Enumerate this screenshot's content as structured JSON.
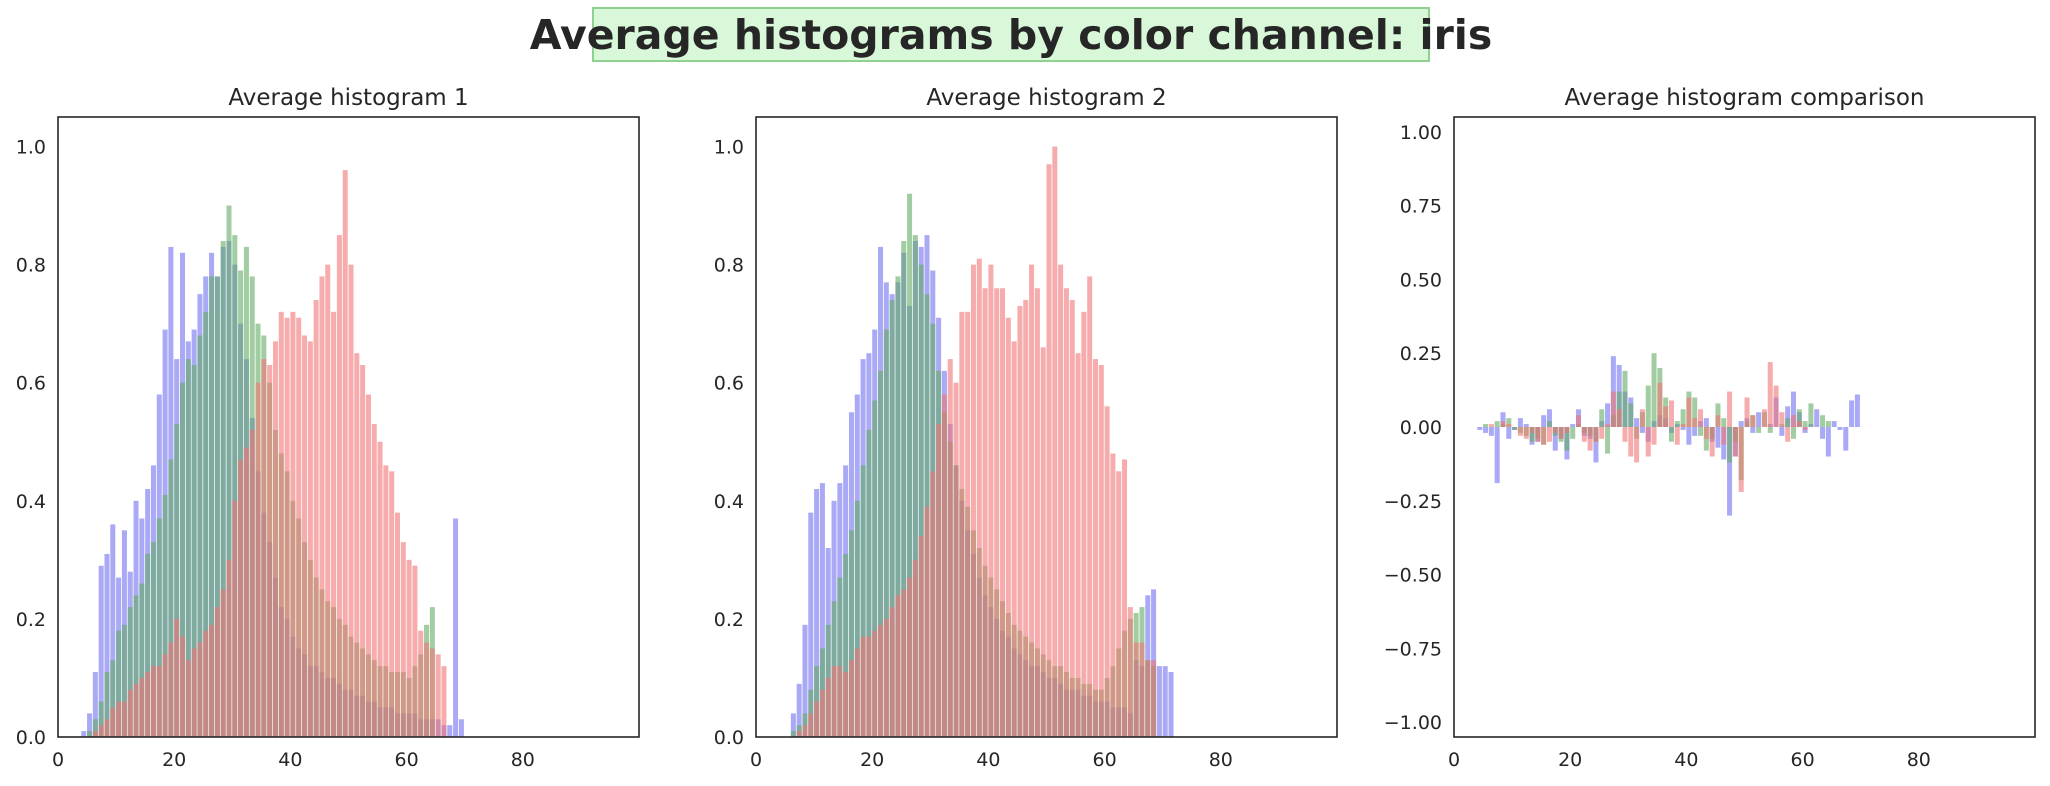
{
  "figure": {
    "suptitle": "Average histograms by color channel: iris",
    "colors": {
      "blue": "#6f6ff0",
      "green": "#64ab64",
      "red": "#f07474",
      "frame": "#262626",
      "title_box_bg": "#d9f7d9",
      "title_box_border": "#8fd18f"
    }
  },
  "chart_data": [
    {
      "type": "bar",
      "title": "Average histogram 1",
      "xlim": [
        0,
        100
      ],
      "ylim": [
        0,
        1.05
      ],
      "xticks": [
        "0",
        "20",
        "40",
        "60",
        "80"
      ],
      "xtick_values": [
        0,
        20,
        40,
        60,
        80
      ],
      "yticks": [
        "0.0",
        "0.2",
        "0.4",
        "0.6",
        "0.8",
        "1.0"
      ],
      "ytick_values": [
        0,
        0.2,
        0.4,
        0.6,
        0.8,
        1.0
      ],
      "x_start": 4,
      "series": [
        {
          "color": "blue",
          "values": [
            0.01,
            0.04,
            0.11,
            0.29,
            0.31,
            0.36,
            0.27,
            0.35,
            0.28,
            0.4,
            0.37,
            0.42,
            0.46,
            0.58,
            0.69,
            0.83,
            0.64,
            0.82,
            0.67,
            0.69,
            0.75,
            0.78,
            0.82,
            0.78,
            0.83,
            0.84,
            0.8,
            0.7,
            0.64,
            0.54,
            0.45,
            0.38,
            0.33,
            0.27,
            0.22,
            0.2,
            0.17,
            0.15,
            0.14,
            0.12,
            0.12,
            0.11,
            0.1,
            0.1,
            0.09,
            0.08,
            0.08,
            0.07,
            0.07,
            0.06,
            0.06,
            0.05,
            0.05,
            0.05,
            0.04,
            0.04,
            0.04,
            0.04,
            0.03,
            0.03,
            0.03,
            0.03,
            0.02,
            0.02,
            0.37,
            0.03
          ]
        },
        {
          "color": "green",
          "values": [
            0.0,
            0.01,
            0.03,
            0.06,
            0.11,
            0.13,
            0.18,
            0.19,
            0.22,
            0.24,
            0.26,
            0.31,
            0.33,
            0.37,
            0.41,
            0.47,
            0.53,
            0.6,
            0.64,
            0.63,
            0.68,
            0.72,
            0.78,
            0.78,
            0.84,
            0.9,
            0.85,
            0.79,
            0.83,
            0.78,
            0.7,
            0.68,
            0.6,
            0.52,
            0.48,
            0.45,
            0.4,
            0.37,
            0.33,
            0.3,
            0.27,
            0.25,
            0.23,
            0.22,
            0.2,
            0.19,
            0.17,
            0.16,
            0.15,
            0.14,
            0.13,
            0.12,
            0.12,
            0.11,
            0.11,
            0.11,
            0.1,
            0.12,
            0.14,
            0.19,
            0.22,
            0.0,
            0.0,
            0.0,
            0.0,
            0.0
          ]
        },
        {
          "color": "red",
          "values": [
            0.0,
            0.0,
            0.01,
            0.02,
            0.03,
            0.05,
            0.06,
            0.06,
            0.08,
            0.09,
            0.1,
            0.11,
            0.12,
            0.12,
            0.14,
            0.16,
            0.2,
            0.17,
            0.13,
            0.15,
            0.16,
            0.18,
            0.19,
            0.22,
            0.25,
            0.3,
            0.4,
            0.47,
            0.49,
            0.52,
            0.6,
            0.64,
            0.63,
            0.67,
            0.72,
            0.71,
            0.72,
            0.71,
            0.68,
            0.67,
            0.74,
            0.78,
            0.8,
            0.72,
            0.85,
            0.96,
            0.8,
            0.65,
            0.63,
            0.58,
            0.53,
            0.5,
            0.46,
            0.45,
            0.38,
            0.33,
            0.3,
            0.29,
            0.18,
            0.16,
            0.15,
            0.14,
            0.12,
            0.0,
            0.0,
            0.0
          ]
        }
      ]
    },
    {
      "type": "bar",
      "title": "Average histogram 2",
      "xlim": [
        0,
        100
      ],
      "ylim": [
        0,
        1.05
      ],
      "xticks": [
        "0",
        "20",
        "40",
        "60",
        "80"
      ],
      "xtick_values": [
        0,
        20,
        40,
        60,
        80
      ],
      "yticks": [
        "0.0",
        "0.2",
        "0.4",
        "0.6",
        "0.8",
        "1.0"
      ],
      "ytick_values": [
        0,
        0.2,
        0.4,
        0.6,
        0.8,
        1.0
      ],
      "x_start": 6,
      "series": [
        {
          "color": "blue",
          "values": [
            0.04,
            0.09,
            0.19,
            0.38,
            0.42,
            0.43,
            0.32,
            0.4,
            0.43,
            0.46,
            0.55,
            0.58,
            0.64,
            0.65,
            0.69,
            0.83,
            0.77,
            0.75,
            0.77,
            0.82,
            0.73,
            0.84,
            0.83,
            0.85,
            0.79,
            0.71,
            0.62,
            0.53,
            0.46,
            0.4,
            0.35,
            0.31,
            0.27,
            0.24,
            0.22,
            0.2,
            0.18,
            0.17,
            0.15,
            0.14,
            0.13,
            0.12,
            0.12,
            0.11,
            0.1,
            0.1,
            0.09,
            0.08,
            0.08,
            0.08,
            0.07,
            0.07,
            0.06,
            0.06,
            0.06,
            0.05,
            0.05,
            0.05,
            0.04,
            0.13,
            0.12,
            0.24,
            0.25,
            0.12,
            0.12,
            0.11
          ]
        },
        {
          "color": "green",
          "values": [
            0.01,
            0.02,
            0.04,
            0.08,
            0.12,
            0.15,
            0.19,
            0.23,
            0.27,
            0.31,
            0.35,
            0.4,
            0.46,
            0.52,
            0.57,
            0.62,
            0.69,
            0.74,
            0.78,
            0.84,
            0.92,
            0.85,
            0.8,
            0.75,
            0.7,
            0.62,
            0.55,
            0.5,
            0.46,
            0.42,
            0.39,
            0.35,
            0.32,
            0.29,
            0.27,
            0.25,
            0.23,
            0.21,
            0.19,
            0.18,
            0.17,
            0.16,
            0.15,
            0.14,
            0.13,
            0.12,
            0.12,
            0.11,
            0.1,
            0.1,
            0.09,
            0.09,
            0.08,
            0.08,
            0.1,
            0.12,
            0.15,
            0.18,
            0.2,
            0.21,
            0.22,
            0.13,
            0.12,
            0.0,
            0.0,
            0.0
          ]
        },
        {
          "color": "red",
          "values": [
            0.0,
            0.01,
            0.02,
            0.04,
            0.06,
            0.08,
            0.1,
            0.12,
            0.12,
            0.11,
            0.13,
            0.15,
            0.17,
            0.17,
            0.18,
            0.19,
            0.2,
            0.22,
            0.24,
            0.25,
            0.27,
            0.3,
            0.34,
            0.39,
            0.45,
            0.53,
            0.58,
            0.64,
            0.6,
            0.72,
            0.72,
            0.8,
            0.81,
            0.76,
            0.8,
            0.76,
            0.76,
            0.71,
            0.67,
            0.73,
            0.74,
            0.8,
            0.76,
            0.66,
            0.97,
            1.0,
            0.8,
            0.76,
            0.74,
            0.65,
            0.72,
            0.78,
            0.64,
            0.63,
            0.56,
            0.48,
            0.45,
            0.47,
            0.22,
            0.16,
            0.16,
            0.13,
            0.13,
            0.0,
            0.0,
            0.0
          ]
        }
      ]
    },
    {
      "type": "bar",
      "title": "Average histogram comparison",
      "xlim": [
        0,
        100
      ],
      "ylim": [
        -1.05,
        1.05
      ],
      "xticks": [
        "0",
        "20",
        "40",
        "60",
        "80"
      ],
      "xtick_values": [
        0,
        20,
        40,
        60,
        80
      ],
      "yticks": [
        "−1.00",
        "−0.75",
        "−0.50",
        "−0.25",
        "0.00",
        "0.25",
        "0.50",
        "0.75",
        "1.00"
      ],
      "ytick_values": [
        -1.0,
        -0.75,
        -0.5,
        -0.25,
        0,
        0.25,
        0.5,
        0.75,
        1.0
      ],
      "x_start": 4,
      "series": [
        {
          "color": "blue",
          "values": [
            -0.01,
            -0.02,
            -0.03,
            -0.19,
            0.05,
            -0.04,
            -0.01,
            0.03,
            0.01,
            -0.06,
            -0.05,
            0.04,
            0.06,
            -0.08,
            -0.04,
            -0.11,
            0.01,
            0.06,
            -0.03,
            -0.04,
            -0.12,
            0.02,
            0.08,
            0.24,
            0.21,
            0.12,
            0.1,
            0.03,
            -0.02,
            -0.05,
            0.02,
            0.04,
            0.03,
            -0.02,
            0.01,
            -0.01,
            -0.06,
            -0.03,
            0.02,
            0.03,
            -0.05,
            -0.07,
            -0.11,
            -0.3,
            -0.1,
            0.02,
            0.03,
            -0.02,
            0.05,
            0.0,
            0.01,
            0.1,
            -0.03,
            0.07,
            0.12,
            0.05,
            -0.02,
            0.01,
            0.06,
            -0.04,
            -0.1,
            0.02,
            -0.01,
            -0.08,
            0.09,
            0.11
          ]
        },
        {
          "color": "green",
          "values": [
            0.0,
            0.01,
            0.0,
            0.02,
            0.01,
            0.03,
            -0.01,
            -0.02,
            -0.03,
            -0.05,
            -0.04,
            -0.06,
            0.02,
            -0.03,
            -0.05,
            -0.08,
            -0.04,
            0.01,
            -0.02,
            -0.03,
            -0.05,
            0.06,
            -0.09,
            0.04,
            0.12,
            0.19,
            0.08,
            -0.04,
            0.05,
            0.14,
            0.25,
            0.2,
            0.1,
            -0.05,
            0.02,
            0.06,
            0.12,
            0.1,
            -0.03,
            -0.08,
            -0.04,
            0.08,
            0.03,
            -0.12,
            -0.05,
            -0.18,
            0.02,
            0.04,
            -0.02,
            0.05,
            -0.02,
            0.0,
            0.01,
            0.03,
            -0.04,
            0.06,
            0.02,
            0.08,
            0.0,
            0.04,
            0.02,
            0.0,
            0.0,
            0.0,
            0.0,
            0.0
          ]
        },
        {
          "color": "red",
          "values": [
            0.0,
            0.0,
            0.01,
            0.0,
            0.02,
            0.01,
            0.0,
            -0.03,
            -0.04,
            -0.02,
            -0.05,
            -0.06,
            -0.05,
            -0.02,
            -0.04,
            -0.02,
            0.0,
            0.04,
            -0.05,
            -0.08,
            -0.05,
            -0.04,
            0.01,
            0.12,
            0.06,
            -0.05,
            -0.1,
            -0.12,
            0.06,
            -0.1,
            -0.06,
            0.15,
            0.07,
            0.09,
            -0.06,
            0.01,
            0.1,
            0.03,
            0.06,
            -0.04,
            -0.1,
            0.04,
            -0.06,
            0.12,
            -0.1,
            -0.22,
            0.1,
            0.04,
            0.0,
            0.06,
            0.22,
            0.14,
            0.05,
            -0.05,
            0.04,
            0.02,
            -0.01,
            0.0,
            0.0,
            0.0,
            0.0,
            0.0,
            0.0,
            0.0,
            0.0,
            0.0
          ]
        }
      ]
    }
  ]
}
